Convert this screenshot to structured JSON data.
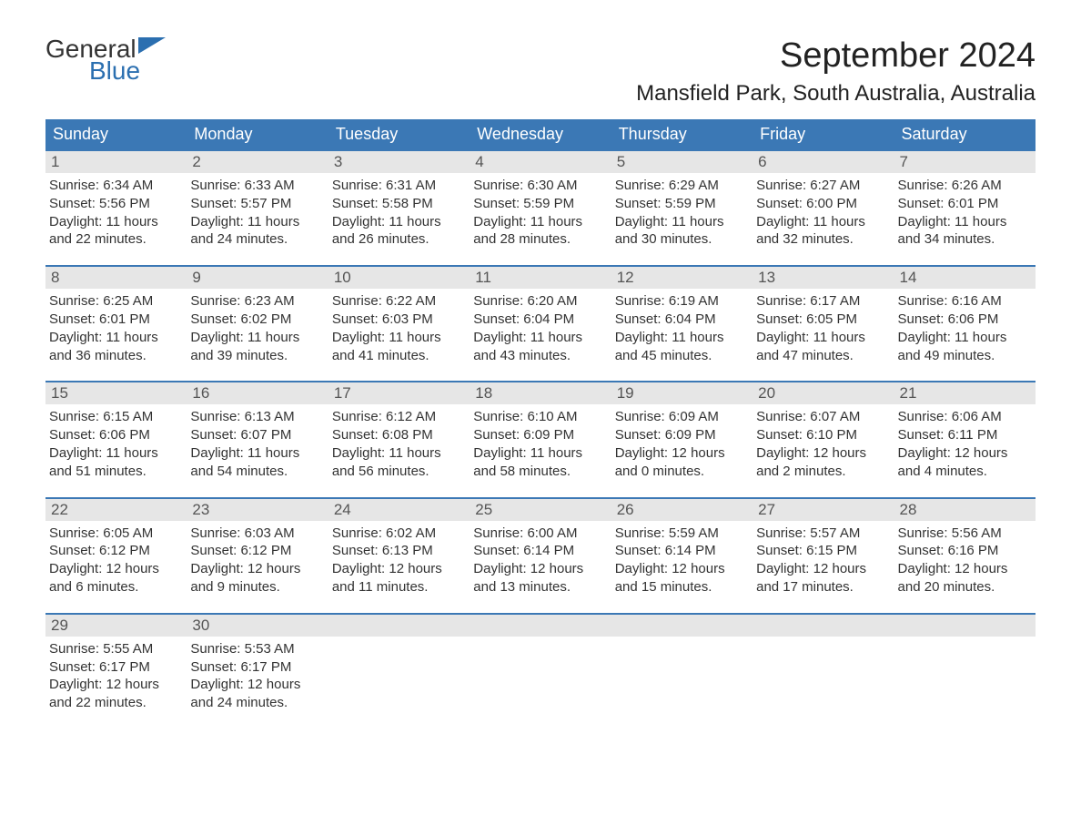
{
  "logo": {
    "general": "General",
    "blue": "Blue",
    "flag_color": "#2b6fb0"
  },
  "title": "September 2024",
  "location": "Mansfield Park, South Australia, Australia",
  "colors": {
    "header_bg": "#3b78b5",
    "header_text": "#ffffff",
    "daynum_bg": "#e6e6e6",
    "daynum_text": "#555555",
    "body_text": "#333333",
    "week_border": "#3b78b5"
  },
  "fonts": {
    "title_size": 38,
    "location_size": 24,
    "dayheader_size": 18,
    "daynum_size": 17,
    "body_size": 15
  },
  "day_headers": [
    "Sunday",
    "Monday",
    "Tuesday",
    "Wednesday",
    "Thursday",
    "Friday",
    "Saturday"
  ],
  "weeks": [
    [
      {
        "num": "1",
        "sunrise": "Sunrise: 6:34 AM",
        "sunset": "Sunset: 5:56 PM",
        "daylight": "Daylight: 11 hours and 22 minutes."
      },
      {
        "num": "2",
        "sunrise": "Sunrise: 6:33 AM",
        "sunset": "Sunset: 5:57 PM",
        "daylight": "Daylight: 11 hours and 24 minutes."
      },
      {
        "num": "3",
        "sunrise": "Sunrise: 6:31 AM",
        "sunset": "Sunset: 5:58 PM",
        "daylight": "Daylight: 11 hours and 26 minutes."
      },
      {
        "num": "4",
        "sunrise": "Sunrise: 6:30 AM",
        "sunset": "Sunset: 5:59 PM",
        "daylight": "Daylight: 11 hours and 28 minutes."
      },
      {
        "num": "5",
        "sunrise": "Sunrise: 6:29 AM",
        "sunset": "Sunset: 5:59 PM",
        "daylight": "Daylight: 11 hours and 30 minutes."
      },
      {
        "num": "6",
        "sunrise": "Sunrise: 6:27 AM",
        "sunset": "Sunset: 6:00 PM",
        "daylight": "Daylight: 11 hours and 32 minutes."
      },
      {
        "num": "7",
        "sunrise": "Sunrise: 6:26 AM",
        "sunset": "Sunset: 6:01 PM",
        "daylight": "Daylight: 11 hours and 34 minutes."
      }
    ],
    [
      {
        "num": "8",
        "sunrise": "Sunrise: 6:25 AM",
        "sunset": "Sunset: 6:01 PM",
        "daylight": "Daylight: 11 hours and 36 minutes."
      },
      {
        "num": "9",
        "sunrise": "Sunrise: 6:23 AM",
        "sunset": "Sunset: 6:02 PM",
        "daylight": "Daylight: 11 hours and 39 minutes."
      },
      {
        "num": "10",
        "sunrise": "Sunrise: 6:22 AM",
        "sunset": "Sunset: 6:03 PM",
        "daylight": "Daylight: 11 hours and 41 minutes."
      },
      {
        "num": "11",
        "sunrise": "Sunrise: 6:20 AM",
        "sunset": "Sunset: 6:04 PM",
        "daylight": "Daylight: 11 hours and 43 minutes."
      },
      {
        "num": "12",
        "sunrise": "Sunrise: 6:19 AM",
        "sunset": "Sunset: 6:04 PM",
        "daylight": "Daylight: 11 hours and 45 minutes."
      },
      {
        "num": "13",
        "sunrise": "Sunrise: 6:17 AM",
        "sunset": "Sunset: 6:05 PM",
        "daylight": "Daylight: 11 hours and 47 minutes."
      },
      {
        "num": "14",
        "sunrise": "Sunrise: 6:16 AM",
        "sunset": "Sunset: 6:06 PM",
        "daylight": "Daylight: 11 hours and 49 minutes."
      }
    ],
    [
      {
        "num": "15",
        "sunrise": "Sunrise: 6:15 AM",
        "sunset": "Sunset: 6:06 PM",
        "daylight": "Daylight: 11 hours and 51 minutes."
      },
      {
        "num": "16",
        "sunrise": "Sunrise: 6:13 AM",
        "sunset": "Sunset: 6:07 PM",
        "daylight": "Daylight: 11 hours and 54 minutes."
      },
      {
        "num": "17",
        "sunrise": "Sunrise: 6:12 AM",
        "sunset": "Sunset: 6:08 PM",
        "daylight": "Daylight: 11 hours and 56 minutes."
      },
      {
        "num": "18",
        "sunrise": "Sunrise: 6:10 AM",
        "sunset": "Sunset: 6:09 PM",
        "daylight": "Daylight: 11 hours and 58 minutes."
      },
      {
        "num": "19",
        "sunrise": "Sunrise: 6:09 AM",
        "sunset": "Sunset: 6:09 PM",
        "daylight": "Daylight: 12 hours and 0 minutes."
      },
      {
        "num": "20",
        "sunrise": "Sunrise: 6:07 AM",
        "sunset": "Sunset: 6:10 PM",
        "daylight": "Daylight: 12 hours and 2 minutes."
      },
      {
        "num": "21",
        "sunrise": "Sunrise: 6:06 AM",
        "sunset": "Sunset: 6:11 PM",
        "daylight": "Daylight: 12 hours and 4 minutes."
      }
    ],
    [
      {
        "num": "22",
        "sunrise": "Sunrise: 6:05 AM",
        "sunset": "Sunset: 6:12 PM",
        "daylight": "Daylight: 12 hours and 6 minutes."
      },
      {
        "num": "23",
        "sunrise": "Sunrise: 6:03 AM",
        "sunset": "Sunset: 6:12 PM",
        "daylight": "Daylight: 12 hours and 9 minutes."
      },
      {
        "num": "24",
        "sunrise": "Sunrise: 6:02 AM",
        "sunset": "Sunset: 6:13 PM",
        "daylight": "Daylight: 12 hours and 11 minutes."
      },
      {
        "num": "25",
        "sunrise": "Sunrise: 6:00 AM",
        "sunset": "Sunset: 6:14 PM",
        "daylight": "Daylight: 12 hours and 13 minutes."
      },
      {
        "num": "26",
        "sunrise": "Sunrise: 5:59 AM",
        "sunset": "Sunset: 6:14 PM",
        "daylight": "Daylight: 12 hours and 15 minutes."
      },
      {
        "num": "27",
        "sunrise": "Sunrise: 5:57 AM",
        "sunset": "Sunset: 6:15 PM",
        "daylight": "Daylight: 12 hours and 17 minutes."
      },
      {
        "num": "28",
        "sunrise": "Sunrise: 5:56 AM",
        "sunset": "Sunset: 6:16 PM",
        "daylight": "Daylight: 12 hours and 20 minutes."
      }
    ],
    [
      {
        "num": "29",
        "sunrise": "Sunrise: 5:55 AM",
        "sunset": "Sunset: 6:17 PM",
        "daylight": "Daylight: 12 hours and 22 minutes."
      },
      {
        "num": "30",
        "sunrise": "Sunrise: 5:53 AM",
        "sunset": "Sunset: 6:17 PM",
        "daylight": "Daylight: 12 hours and 24 minutes."
      },
      {
        "empty": true
      },
      {
        "empty": true
      },
      {
        "empty": true
      },
      {
        "empty": true
      },
      {
        "empty": true
      }
    ]
  ]
}
